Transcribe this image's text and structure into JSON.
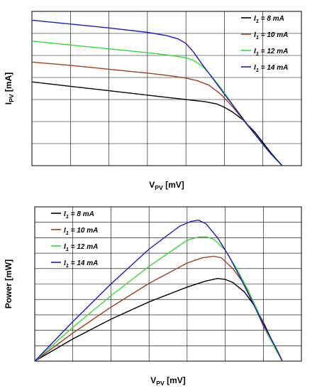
{
  "chart_data": [
    {
      "type": "line",
      "xlabel": {
        "main": "V",
        "sub": "PV",
        "rest": " [mV]"
      },
      "ylabel": {
        "main": "I",
        "sub": "PV",
        "rest": " [mA]"
      },
      "xlim": [
        0,
        700
      ],
      "ylim": [
        0,
        14
      ],
      "xticks": [
        "0",
        "100",
        "200",
        "300",
        "400",
        "500",
        "600",
        "700"
      ],
      "yticks": [
        "0",
        "2",
        "4",
        "6",
        "8",
        "10",
        "12",
        "14"
      ],
      "grid": true,
      "legend_position": "top-right",
      "series": [
        {
          "name": "I1 = 8 mA",
          "label_main": "I",
          "label_sub": "1",
          "label_rest": " = 8 mA",
          "color": "#000000",
          "x": [
            0,
            100,
            200,
            300,
            350,
            400,
            450,
            480,
            500,
            520,
            550,
            580,
            600,
            620,
            640,
            650
          ],
          "y": [
            7.6,
            7.2,
            6.8,
            6.4,
            6.2,
            6.0,
            5.8,
            5.6,
            5.3,
            4.9,
            4.1,
            3.0,
            2.1,
            1.2,
            0.4,
            0
          ]
        },
        {
          "name": "I1 = 10 mA",
          "label_main": "I",
          "label_sub": "1",
          "label_rest": " = 10 mA",
          "color": "#a0401a",
          "x": [
            0,
            100,
            200,
            300,
            350,
            400,
            430,
            460,
            490,
            520,
            550,
            580,
            600,
            620,
            640,
            650
          ],
          "y": [
            9.4,
            9.1,
            8.75,
            8.4,
            8.2,
            7.95,
            7.7,
            7.3,
            6.5,
            5.4,
            4.1,
            2.8,
            1.9,
            1.1,
            0.4,
            0
          ]
        },
        {
          "name": "I1 = 12 mA",
          "label_main": "I",
          "label_sub": "1",
          "label_rest": " = 12 mA",
          "color": "#33dd33",
          "x": [
            0,
            100,
            200,
            300,
            350,
            400,
            420,
            440,
            460,
            490,
            520,
            550,
            580,
            610,
            630,
            650
          ],
          "y": [
            11.3,
            10.95,
            10.6,
            10.25,
            10.05,
            9.8,
            9.55,
            9.1,
            8.4,
            7.1,
            5.6,
            4.2,
            2.8,
            1.5,
            0.7,
            0
          ]
        },
        {
          "name": "I1 = 14 mA",
          "label_main": "I",
          "label_sub": "1",
          "label_rest": " = 14 mA",
          "color": "#1a1acc",
          "x": [
            0,
            100,
            200,
            300,
            350,
            380,
            400,
            420,
            440,
            470,
            500,
            530,
            560,
            590,
            620,
            650
          ],
          "y": [
            13.2,
            12.85,
            12.5,
            12.1,
            11.8,
            11.5,
            11.1,
            10.3,
            9.3,
            7.9,
            6.5,
            5.1,
            3.7,
            2.4,
            1.1,
            0
          ]
        }
      ]
    },
    {
      "type": "line",
      "xlabel": {
        "main": "V",
        "sub": "PV",
        "rest": " [mV]"
      },
      "ylabel": {
        "main": "Power [mW]",
        "sub": "",
        "rest": ""
      },
      "xlim": [
        0,
        700
      ],
      "ylim": [
        0,
        5
      ],
      "xticks": [
        "0",
        "100",
        "200",
        "300",
        "400",
        "500",
        "600",
        "700"
      ],
      "yticks": [
        "0",
        "0.5",
        "1",
        "1.5",
        "2",
        "2.5",
        "3",
        "3.5",
        "4",
        "4.5",
        "5"
      ],
      "grid": true,
      "legend_position": "top-left",
      "series": [
        {
          "name": "I1 = 8 mA",
          "label_main": "I",
          "label_sub": "1",
          "label_rest": " = 8 mA",
          "color": "#000000",
          "x": [
            0,
            100,
            200,
            300,
            400,
            450,
            480,
            500,
            520,
            550,
            580,
            600,
            620,
            640,
            650
          ],
          "y": [
            0,
            0.72,
            1.36,
            1.92,
            2.4,
            2.6,
            2.68,
            2.65,
            2.55,
            2.25,
            1.74,
            1.26,
            0.74,
            0.26,
            0
          ]
        },
        {
          "name": "I1 = 10 mA",
          "label_main": "I",
          "label_sub": "1",
          "label_rest": " = 10 mA",
          "color": "#a0401a",
          "x": [
            0,
            100,
            200,
            300,
            400,
            440,
            470,
            490,
            520,
            550,
            580,
            600,
            620,
            640,
            650
          ],
          "y": [
            0,
            0.91,
            1.75,
            2.52,
            3.18,
            3.35,
            3.4,
            3.35,
            3.0,
            2.5,
            1.7,
            1.14,
            0.68,
            0.26,
            0
          ]
        },
        {
          "name": "I1 = 12 mA",
          "label_main": "I",
          "label_sub": "1",
          "label_rest": " = 12 mA",
          "color": "#33dd33",
          "x": [
            0,
            100,
            200,
            300,
            400,
            430,
            450,
            470,
            500,
            530,
            560,
            590,
            610,
            630,
            650
          ],
          "y": [
            0,
            1.1,
            2.12,
            3.07,
            3.92,
            4.02,
            4.03,
            3.95,
            3.6,
            3.0,
            2.3,
            1.5,
            0.92,
            0.44,
            0
          ]
        },
        {
          "name": "I1 = 14 mA",
          "label_main": "I",
          "label_sub": "1",
          "label_rest": " = 14 mA",
          "color": "#1a1acc",
          "x": [
            0,
            100,
            200,
            300,
            380,
            410,
            430,
            450,
            480,
            510,
            540,
            570,
            600,
            630,
            650
          ],
          "y": [
            0,
            1.28,
            2.5,
            3.63,
            4.37,
            4.53,
            4.57,
            4.45,
            4.0,
            3.4,
            2.7,
            1.95,
            1.2,
            0.5,
            0
          ]
        }
      ]
    }
  ]
}
